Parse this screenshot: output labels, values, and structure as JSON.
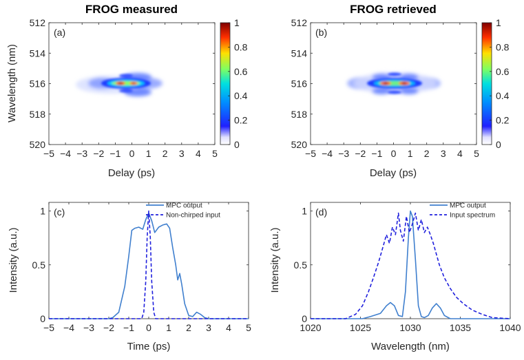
{
  "chart_data": [
    {
      "type": "heatmap",
      "title": "FROG measured",
      "panel_label": "(a)",
      "xlabel": "Delay (ps)",
      "ylabel": "Wavelength (nm)",
      "xlim": [
        -5,
        5
      ],
      "ylim": [
        512,
        520
      ],
      "y_reversed": true,
      "xticks": [
        -5,
        -4,
        -3,
        -2,
        -1,
        0,
        1,
        2,
        3,
        4,
        5
      ],
      "yticks": [
        512,
        514,
        516,
        518,
        520
      ],
      "colorbar": {
        "ticks": [
          0,
          0.2,
          0.4,
          0.6,
          0.8,
          1
        ],
        "colormap": "jet"
      },
      "features": [
        {
          "delay": -0.6,
          "wavelength": 516.0,
          "value": 1.0
        },
        {
          "delay": 0.6,
          "wavelength": 516.0,
          "value": 0.9
        },
        {
          "delay": 0,
          "wavelength": 516.0,
          "value": 0.45
        },
        {
          "delay": 0,
          "wavelength": 515.4,
          "value": 0.3
        },
        {
          "delay": 0,
          "wavelength": 516.6,
          "value": 0.3
        },
        {
          "delay": -1.4,
          "wavelength": 516.0,
          "value": 0.25
        },
        {
          "delay": 1.4,
          "wavelength": 516.0,
          "value": 0.25
        },
        {
          "delay": -2.3,
          "wavelength": 516.0,
          "value": 0.08
        },
        {
          "delay": 2.3,
          "wavelength": 516.0,
          "value": 0.08
        }
      ]
    },
    {
      "type": "heatmap",
      "title": "FROG retrieved",
      "panel_label": "(b)",
      "xlabel": "Delay (ps)",
      "ylabel": "",
      "xlim": [
        -5,
        5
      ],
      "ylim": [
        512,
        520
      ],
      "y_reversed": true,
      "xticks": [
        -5,
        -4,
        -3,
        -2,
        -1,
        0,
        1,
        2,
        3,
        4,
        5
      ],
      "yticks": [
        512,
        514,
        516,
        518,
        520
      ],
      "colorbar": {
        "ticks": [
          0,
          0.2,
          0.4,
          0.6,
          0.8,
          1
        ],
        "colormap": "jet"
      },
      "features": [
        {
          "delay": -0.6,
          "wavelength": 516.0,
          "value": 1.0
        },
        {
          "delay": 0.6,
          "wavelength": 516.0,
          "value": 0.95
        },
        {
          "delay": 0,
          "wavelength": 516.0,
          "value": 0.5
        },
        {
          "delay": 0,
          "wavelength": 515.4,
          "value": 0.3
        },
        {
          "delay": 0,
          "wavelength": 516.6,
          "value": 0.3
        },
        {
          "delay": -1.5,
          "wavelength": 516.0,
          "value": 0.3
        },
        {
          "delay": 1.5,
          "wavelength": 516.0,
          "value": 0.3
        },
        {
          "delay": -2.6,
          "wavelength": 516.0,
          "value": 0.12
        },
        {
          "delay": 2.6,
          "wavelength": 516.0,
          "value": 0.12
        }
      ]
    },
    {
      "type": "line",
      "panel_label": "(c)",
      "xlabel": "Time (ps)",
      "ylabel": "Intensity (a.u.)",
      "xlim": [
        -5,
        5
      ],
      "ylim": [
        0,
        1.08
      ],
      "xticks": [
        -5,
        -4,
        -3,
        -2,
        -1,
        0,
        1,
        2,
        3,
        4,
        5
      ],
      "yticks": [
        0,
        0.5,
        1
      ],
      "ytick_labels": [
        "0",
        "0.5",
        "1"
      ],
      "legend_position": "top-right",
      "series": [
        {
          "name": "MPC output",
          "style": "solid",
          "color": "#3f7fce",
          "x": [
            -5,
            -2,
            -1.8,
            -1.5,
            -1.2,
            -1.0,
            -0.85,
            -0.7,
            -0.5,
            -0.3,
            -0.15,
            0,
            0.15,
            0.3,
            0.5,
            0.7,
            0.9,
            1.05,
            1.2,
            1.35,
            1.45,
            1.55,
            1.65,
            1.8,
            2.0,
            2.2,
            2.4,
            2.6,
            2.8,
            3.0,
            5
          ],
          "y": [
            0,
            0,
            0.01,
            0.06,
            0.3,
            0.58,
            0.82,
            0.84,
            0.85,
            0.83,
            0.92,
            0.98,
            0.91,
            0.8,
            0.85,
            0.87,
            0.88,
            0.84,
            0.66,
            0.5,
            0.36,
            0.42,
            0.32,
            0.14,
            0.03,
            0.02,
            0.06,
            0.04,
            0.01,
            0,
            0
          ]
        },
        {
          "name": "Non-chirped input",
          "style": "dashed",
          "color": "#1f1fdd",
          "x": [
            -5,
            -0.35,
            -0.25,
            -0.15,
            -0.08,
            0,
            0.08,
            0.15,
            0.25,
            0.35,
            5
          ],
          "y": [
            0,
            0,
            0.06,
            0.35,
            0.75,
            1.0,
            0.75,
            0.35,
            0.06,
            0,
            0
          ]
        }
      ]
    },
    {
      "type": "line",
      "panel_label": "(d)",
      "xlabel": "Wavelength (nm)",
      "ylabel": "Intensity (a.u.)",
      "xlim": [
        1020,
        1040
      ],
      "ylim": [
        0,
        1.08
      ],
      "xticks": [
        1020,
        1025,
        1030,
        1035,
        1040
      ],
      "yticks": [
        0,
        0.5,
        1
      ],
      "ytick_labels": [
        "0",
        "0.5",
        "1"
      ],
      "legend_position": "top-right",
      "series": [
        {
          "name": "MPC output",
          "style": "solid",
          "color": "#3f7fce",
          "x": [
            1020,
            1025.2,
            1026.0,
            1027.0,
            1027.6,
            1028.0,
            1028.4,
            1028.8,
            1029.2,
            1029.5,
            1029.8,
            1030.0,
            1030.2,
            1030.5,
            1030.8,
            1031.1,
            1031.4,
            1031.8,
            1032.2,
            1032.6,
            1033.0,
            1033.4,
            1034.0,
            1040
          ],
          "y": [
            0,
            0,
            0.02,
            0.05,
            0.12,
            0.15,
            0.12,
            0.03,
            0.02,
            0.25,
            0.75,
            1.0,
            0.95,
            0.55,
            0.12,
            0.02,
            0.01,
            0.03,
            0.1,
            0.14,
            0.1,
            0.03,
            0,
            0
          ]
        },
        {
          "name": "Input spectrum",
          "style": "dashed",
          "color": "#1f1fdd",
          "x": [
            1020,
            1023.5,
            1024.5,
            1025.2,
            1025.8,
            1026.3,
            1026.8,
            1027.3,
            1027.6,
            1027.9,
            1028.2,
            1028.5,
            1028.8,
            1029.0,
            1029.3,
            1029.6,
            1029.9,
            1030.2,
            1030.5,
            1030.8,
            1031.1,
            1031.4,
            1031.7,
            1032.0,
            1032.3,
            1032.6,
            1032.9,
            1033.4,
            1034.0,
            1034.6,
            1035.3,
            1036.2,
            1037.2,
            1038.2,
            1040
          ],
          "y": [
            0,
            0,
            0.04,
            0.12,
            0.25,
            0.38,
            0.52,
            0.68,
            0.78,
            0.7,
            0.85,
            0.78,
            0.98,
            0.82,
            0.72,
            0.95,
            0.8,
            0.88,
            0.98,
            0.82,
            0.92,
            0.8,
            0.85,
            0.78,
            0.7,
            0.6,
            0.5,
            0.38,
            0.28,
            0.2,
            0.14,
            0.08,
            0.04,
            0.01,
            0
          ]
        }
      ]
    }
  ]
}
